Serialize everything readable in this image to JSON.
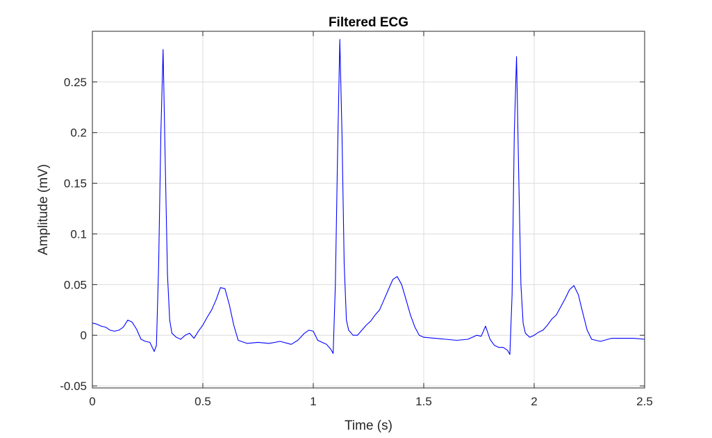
{
  "chart_data": {
    "type": "line",
    "title": "Filtered ECG",
    "xlabel": "Time (s)",
    "ylabel": "Amplitude (mV)",
    "xlim": [
      0,
      2.5
    ],
    "ylim": [
      -0.052,
      0.3
    ],
    "grid": true,
    "x_ticks": [
      0,
      0.5,
      1,
      1.5,
      2,
      2.5
    ],
    "x_tick_labels": [
      "0",
      "0.5",
      "1",
      "1.5",
      "2",
      "2.5"
    ],
    "y_ticks": [
      -0.05,
      0,
      0.05,
      0.1,
      0.15,
      0.2,
      0.25
    ],
    "y_tick_labels": [
      "-0.05",
      "0",
      "0.05",
      "0.1",
      "0.15",
      "0.2",
      "0.25"
    ],
    "series": [
      {
        "color": "#0000ff",
        "x": [
          0,
          0.02,
          0.04,
          0.06,
          0.08,
          0.1,
          0.12,
          0.14,
          0.16,
          0.18,
          0.2,
          0.22,
          0.24,
          0.26,
          0.28,
          0.29,
          0.3,
          0.31,
          0.32,
          0.33,
          0.34,
          0.35,
          0.36,
          0.38,
          0.4,
          0.42,
          0.44,
          0.46,
          0.48,
          0.5,
          0.52,
          0.54,
          0.56,
          0.58,
          0.6,
          0.62,
          0.64,
          0.66,
          0.7,
          0.75,
          0.8,
          0.85,
          0.9,
          0.93,
          0.96,
          0.98,
          1.0,
          1.02,
          1.04,
          1.06,
          1.08,
          1.09,
          1.1,
          1.11,
          1.12,
          1.13,
          1.14,
          1.15,
          1.16,
          1.18,
          1.2,
          1.22,
          1.24,
          1.26,
          1.28,
          1.3,
          1.32,
          1.34,
          1.36,
          1.38,
          1.4,
          1.42,
          1.44,
          1.46,
          1.48,
          1.5,
          1.55,
          1.6,
          1.65,
          1.7,
          1.74,
          1.76,
          1.78,
          1.8,
          1.82,
          1.84,
          1.86,
          1.88,
          1.89,
          1.9,
          1.91,
          1.92,
          1.93,
          1.94,
          1.95,
          1.96,
          1.98,
          2.0,
          2.02,
          2.04,
          2.06,
          2.08,
          2.1,
          2.12,
          2.14,
          2.16,
          2.18,
          2.2,
          2.22,
          2.24,
          2.26,
          2.3,
          2.35,
          2.4,
          2.45,
          2.5
        ],
        "y": [
          0.012,
          0.011,
          0.009,
          0.008,
          0.005,
          0.004,
          0.005,
          0.008,
          0.015,
          0.013,
          0.006,
          -0.004,
          -0.006,
          -0.007,
          -0.016,
          -0.01,
          0.07,
          0.2,
          0.282,
          0.17,
          0.06,
          0.015,
          0.002,
          -0.002,
          -0.004,
          0.0,
          0.002,
          -0.003,
          0.004,
          0.01,
          0.018,
          0.025,
          0.035,
          0.047,
          0.046,
          0.03,
          0.01,
          -0.005,
          -0.008,
          -0.007,
          -0.008,
          -0.006,
          -0.009,
          -0.005,
          0.002,
          0.005,
          0.004,
          -0.005,
          -0.007,
          -0.009,
          -0.014,
          -0.018,
          0.05,
          0.18,
          0.292,
          0.2,
          0.07,
          0.015,
          0.005,
          0.0,
          0.0,
          0.005,
          0.01,
          0.014,
          0.02,
          0.025,
          0.035,
          0.045,
          0.055,
          0.058,
          0.05,
          0.035,
          0.02,
          0.008,
          0.0,
          -0.002,
          -0.003,
          -0.004,
          -0.005,
          -0.004,
          0.0,
          -0.001,
          0.009,
          -0.004,
          -0.01,
          -0.012,
          -0.012,
          -0.015,
          -0.019,
          0.04,
          0.2,
          0.275,
          0.16,
          0.05,
          0.012,
          0.002,
          -0.002,
          0.0,
          0.003,
          0.005,
          0.01,
          0.016,
          0.02,
          0.028,
          0.036,
          0.045,
          0.049,
          0.04,
          0.022,
          0.005,
          -0.004,
          -0.006,
          -0.003,
          -0.003,
          -0.003,
          -0.004
        ]
      }
    ]
  }
}
